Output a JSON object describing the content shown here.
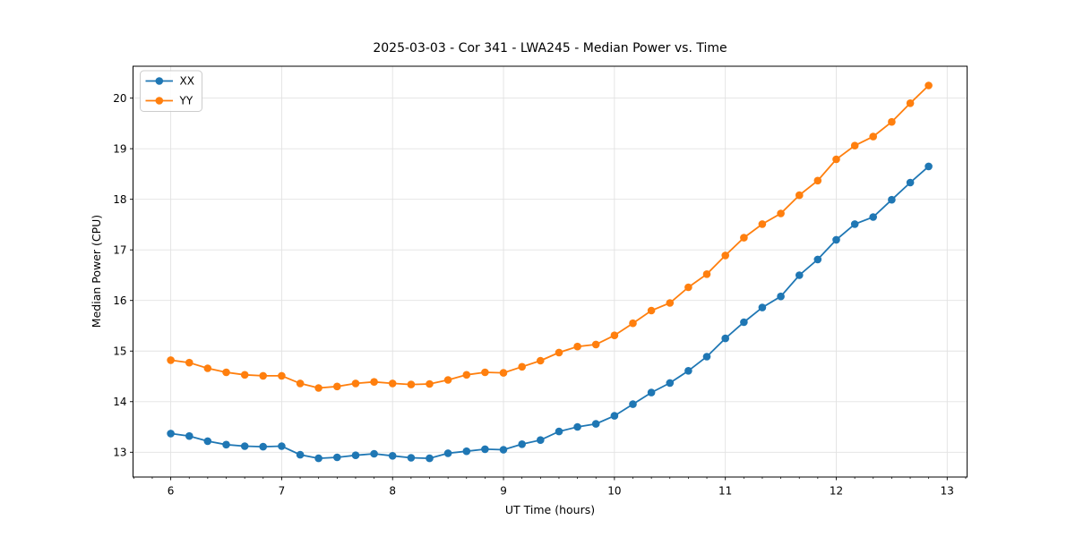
{
  "figure": {
    "background": "#ffffff",
    "text_color": "#000000",
    "grid_color": "#e2e2e2",
    "spine_color": "#000000"
  },
  "legend": {
    "position": "upper-left",
    "entries": [
      {
        "label": "XX",
        "color": "#1f77b4"
      },
      {
        "label": "YY",
        "color": "#ff7f0e"
      }
    ]
  },
  "chart_data": {
    "type": "line",
    "title": "2025-03-03 - Cor 341 - LWA245 - Median Power vs. Time",
    "xlabel": "UT Time (hours)",
    "ylabel": "Median Power (CPU)",
    "grid": true,
    "marker": "circle",
    "legend_position": "upper-left",
    "xlim": [
      5.66,
      13.18
    ],
    "ylim": [
      12.51,
      20.63
    ],
    "xticks": [
      6,
      7,
      8,
      9,
      10,
      11,
      12,
      13
    ],
    "yticks": [
      13,
      14,
      15,
      16,
      17,
      18,
      19,
      20
    ],
    "minor_xtick_step": 0.16667,
    "x": [
      6.0,
      6.167,
      6.333,
      6.5,
      6.667,
      6.833,
      7.0,
      7.167,
      7.333,
      7.5,
      7.667,
      7.833,
      8.0,
      8.167,
      8.333,
      8.5,
      8.667,
      8.833,
      9.0,
      9.167,
      9.333,
      9.5,
      9.667,
      9.833,
      10.0,
      10.167,
      10.333,
      10.5,
      10.667,
      10.833,
      11.0,
      11.167,
      11.333,
      11.5,
      11.667,
      11.833,
      12.0,
      12.167,
      12.333,
      12.5,
      12.667,
      12.833
    ],
    "series": [
      {
        "name": "XX",
        "color": "#1f77b4",
        "values": [
          13.37,
          13.32,
          13.22,
          13.15,
          13.12,
          13.11,
          13.12,
          12.95,
          12.88,
          12.9,
          12.94,
          12.97,
          12.93,
          12.89,
          12.88,
          12.98,
          13.02,
          13.06,
          13.05,
          13.16,
          13.24,
          13.41,
          13.5,
          13.56,
          13.72,
          13.95,
          14.18,
          14.37,
          14.61,
          14.89,
          15.25,
          15.57,
          15.86,
          16.08,
          16.5,
          16.81,
          17.2,
          17.51,
          17.65,
          17.99,
          18.33,
          18.65
        ]
      },
      {
        "name": "YY",
        "color": "#ff7f0e",
        "values": [
          14.82,
          14.77,
          14.66,
          14.58,
          14.53,
          14.51,
          14.51,
          14.36,
          14.27,
          14.3,
          14.36,
          14.39,
          14.36,
          14.34,
          14.35,
          14.43,
          14.53,
          14.58,
          14.57,
          14.69,
          14.81,
          14.97,
          15.09,
          15.13,
          15.31,
          15.55,
          15.8,
          15.95,
          16.26,
          16.52,
          16.89,
          17.24,
          17.51,
          17.72,
          18.08,
          18.37,
          18.79,
          19.06,
          19.24,
          19.53,
          19.9,
          20.25
        ]
      }
    ]
  }
}
